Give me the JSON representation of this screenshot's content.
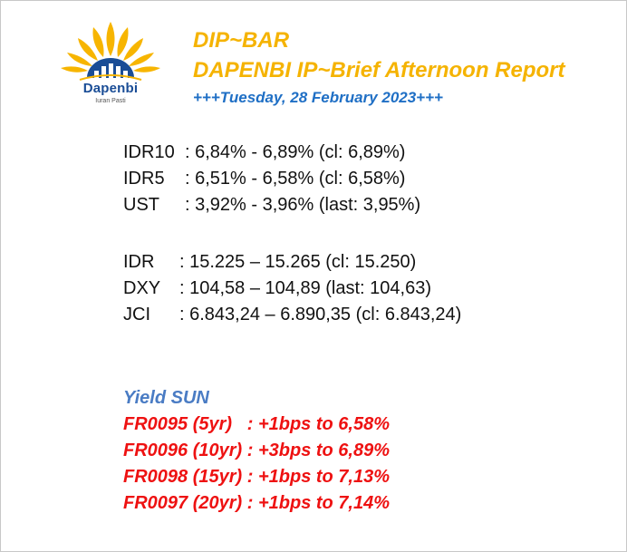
{
  "header": {
    "logo_name": "Dapenbi",
    "logo_tagline": "Iuran Pasti",
    "title_line1": "DIP~BAR",
    "title_line2": "DAPENBI IP~Brief Afternoon Report",
    "date_line": "+++Tuesday, 28 February 2023+++"
  },
  "yields": [
    {
      "label": "IDR10",
      "value": ": 6,84% - 6,89% (cl: 6,89%)"
    },
    {
      "label": "IDR5",
      "value": ": 6,51% - 6,58% (cl: 6,58%)"
    },
    {
      "label": "UST",
      "value": ": 3,92% - 3,96% (last: 3,95%)"
    }
  ],
  "markets": [
    {
      "label": "IDR",
      "value": ": 15.225 – 15.265 (cl: 15.250)"
    },
    {
      "label": "DXY",
      "value": ": 104,58 – 104,89 (last: 104,63)"
    },
    {
      "label": "JCI",
      "value": ": 6.843,24 – 6.890,35 (cl: 6.843,24)"
    }
  ],
  "yield_sun": {
    "title": "Yield SUN",
    "lines": [
      "FR0095 (5yr)   : +1bps to 6,58%",
      "FR0096 (10yr) : +3bps to 6,89%",
      "FR0098 (15yr) : +1bps to 7,13%",
      "FR0097 (20yr) : +1bps to 7,14%"
    ]
  },
  "colors": {
    "title": "#f5b301",
    "date": "#1f6fc5",
    "yield_title": "#4a7cc4",
    "yield_lines": "#ee1111",
    "logo_blue": "#1a4d96"
  },
  "icons": {
    "logo": "sunburst-with-bar-chart-icon"
  }
}
